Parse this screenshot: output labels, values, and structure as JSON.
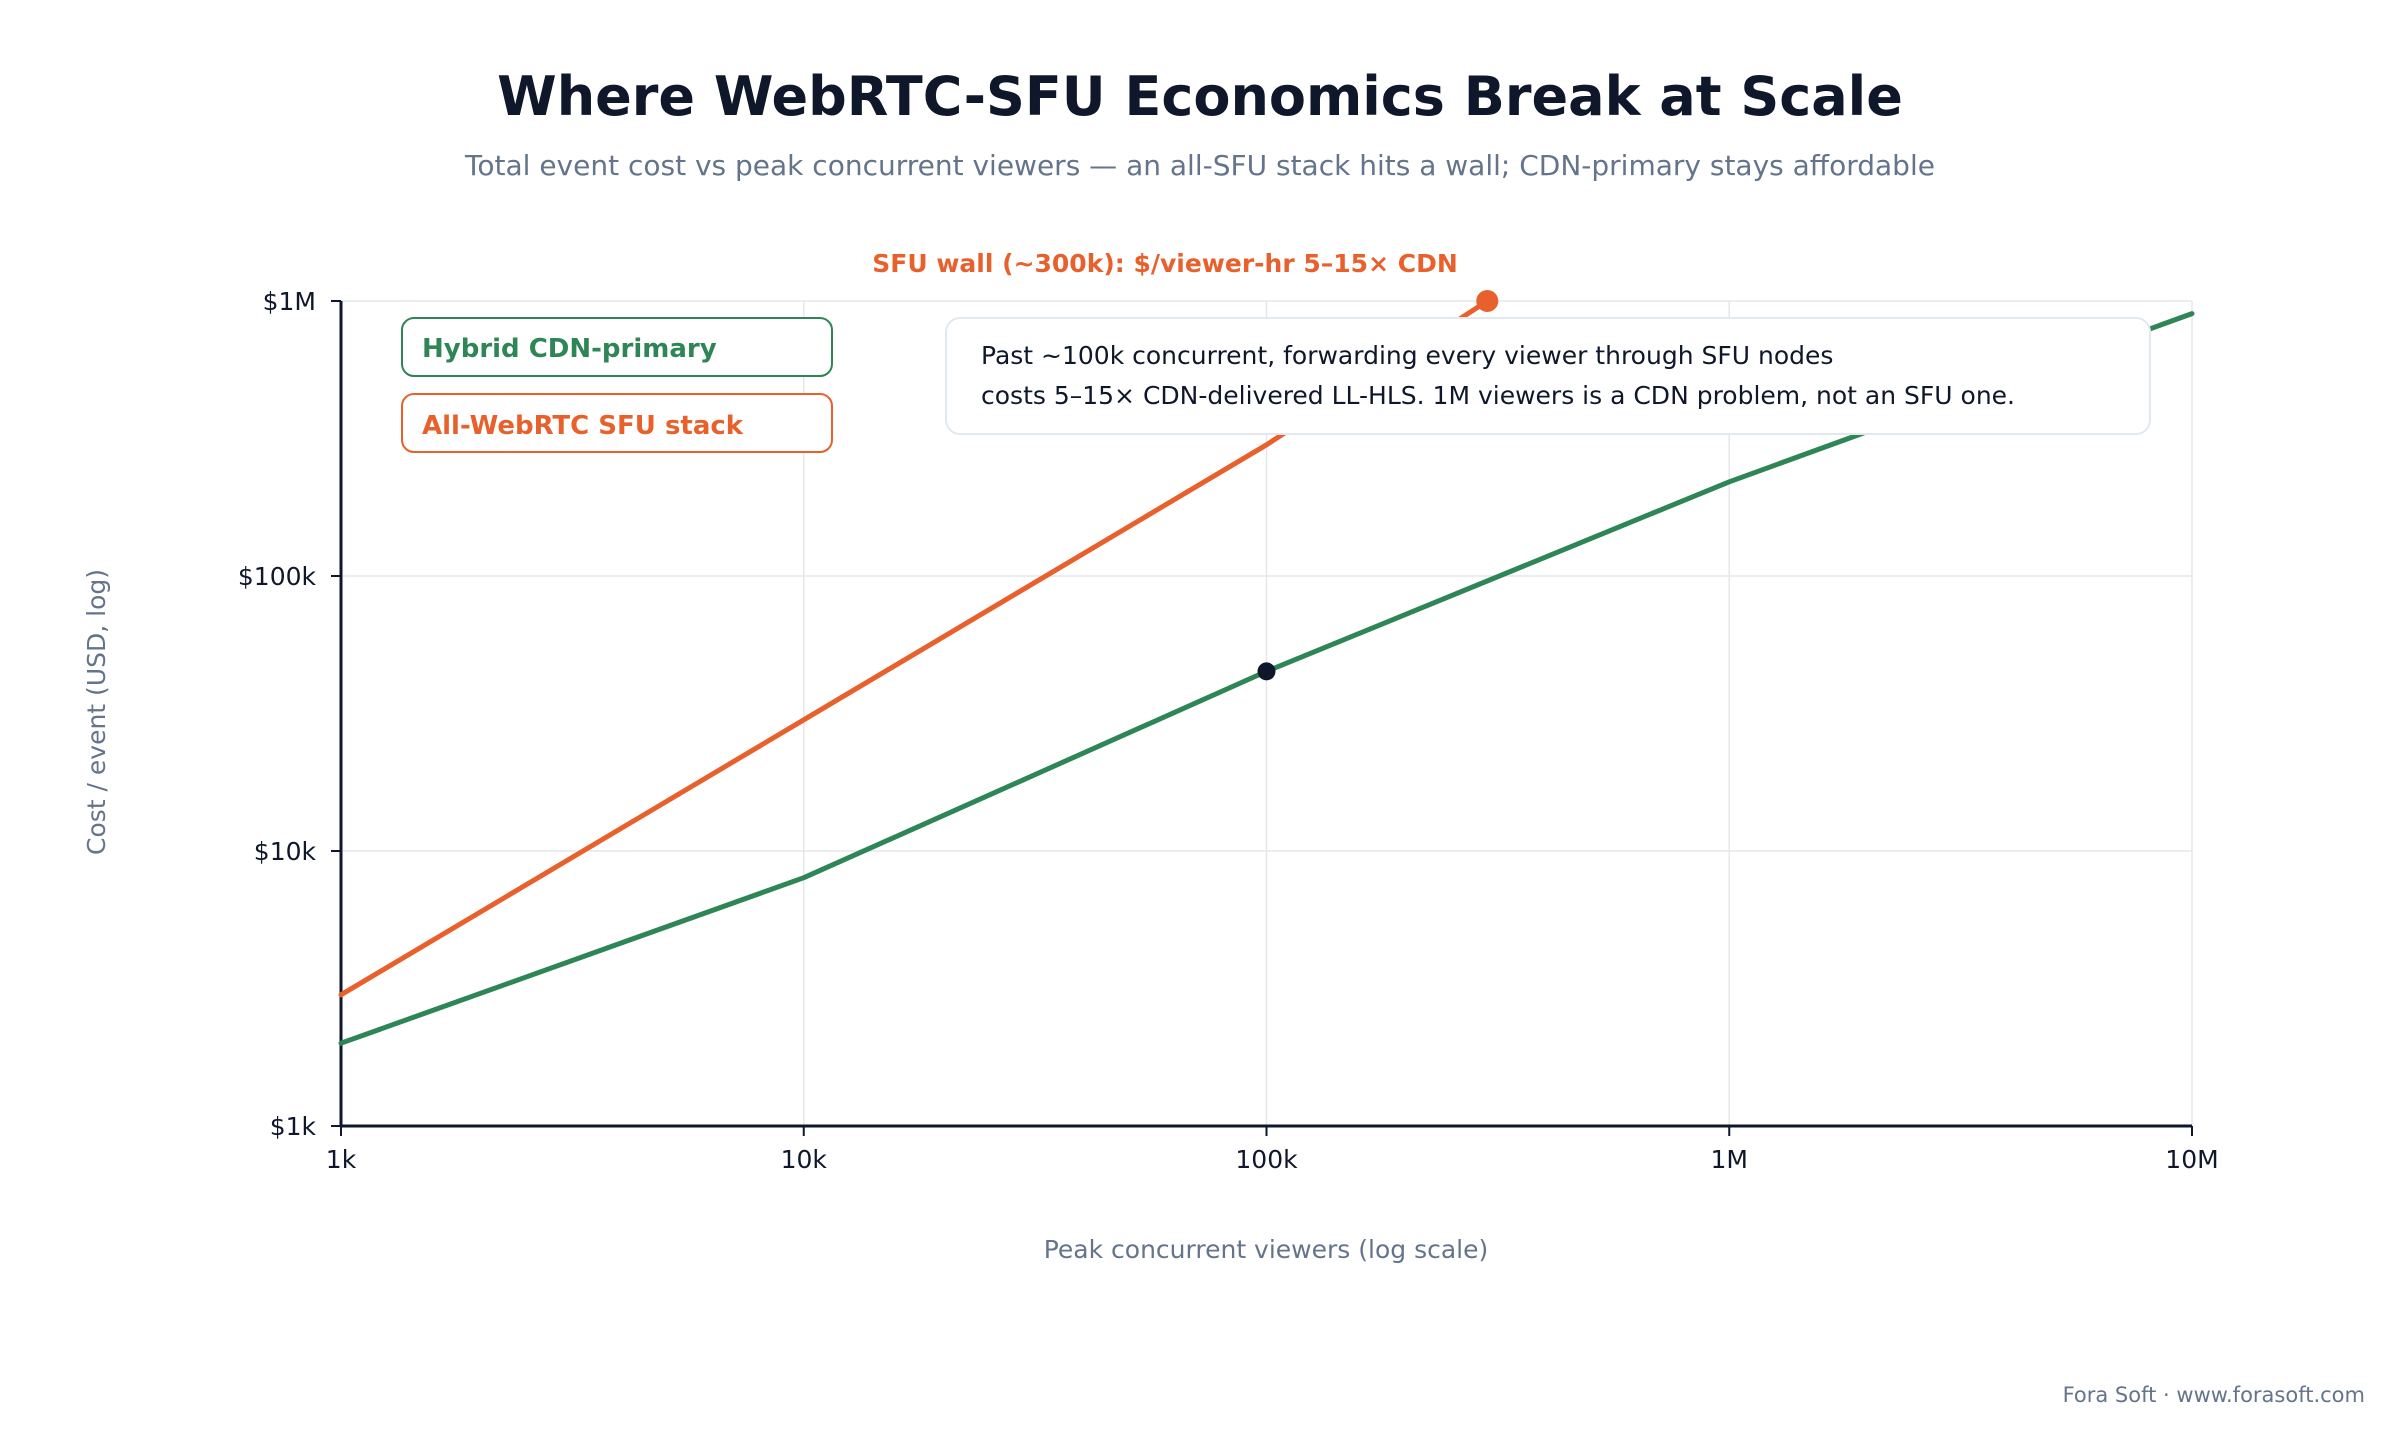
{
  "chart_data": {
    "type": "line",
    "title": "Where WebRTC-SFU Economics Break at Scale",
    "subtitle": "Total event cost vs peak concurrent viewers — an all-SFU stack hits a wall; CDN-primary stays affordable",
    "xlabel": "Peak concurrent viewers (log scale)",
    "ylabel": "Cost / event (USD, log)",
    "x_scale": "log",
    "y_scale": "log",
    "xlim": [
      1000,
      10000000
    ],
    "ylim": [
      1000,
      1000000
    ],
    "grid": true,
    "x_ticks": [
      {
        "value": 1000,
        "label": "1k"
      },
      {
        "value": 10000,
        "label": "10k"
      },
      {
        "value": 100000,
        "label": "100k"
      },
      {
        "value": 1000000,
        "label": "1M"
      },
      {
        "value": 10000000,
        "label": "10M"
      }
    ],
    "y_ticks": [
      {
        "value": 1000,
        "label": "$1k"
      },
      {
        "value": 10000,
        "label": "$10k"
      },
      {
        "value": 100000,
        "label": "$100k"
      },
      {
        "value": 1000000,
        "label": "$1M"
      }
    ],
    "legend_placement": "top-left",
    "series": [
      {
        "name": "Hybrid CDN-primary",
        "color": "#2e8555",
        "x": [
          1000,
          10000,
          100000,
          1000000,
          10000000
        ],
        "y": [
          2000,
          8000,
          45000,
          220000,
          900000
        ]
      },
      {
        "name": "All-WebRTC SFU stack",
        "color": "#e8612c",
        "x": [
          1000,
          10000,
          100000,
          300000
        ],
        "y": [
          3000,
          30000,
          300000,
          1000000
        ]
      }
    ],
    "markers": [
      {
        "x": 100000,
        "y": 45000,
        "color": "#0f172a"
      },
      {
        "x": 300000,
        "y": 1000000,
        "color": "#e8612c"
      }
    ],
    "annotations": {
      "wall_label": "SFU wall (~300k): $/viewer-hr 5–15× CDN",
      "wall_color": "#e8612c",
      "note_lines": [
        "Past ~100k concurrent, forwarding every viewer through SFU nodes",
        "costs 5–15× CDN-delivered LL-HLS. 1M viewers is a CDN problem, not an SFU one."
      ]
    }
  },
  "footer": {
    "credit": "Fora Soft · www.forasoft.com"
  }
}
